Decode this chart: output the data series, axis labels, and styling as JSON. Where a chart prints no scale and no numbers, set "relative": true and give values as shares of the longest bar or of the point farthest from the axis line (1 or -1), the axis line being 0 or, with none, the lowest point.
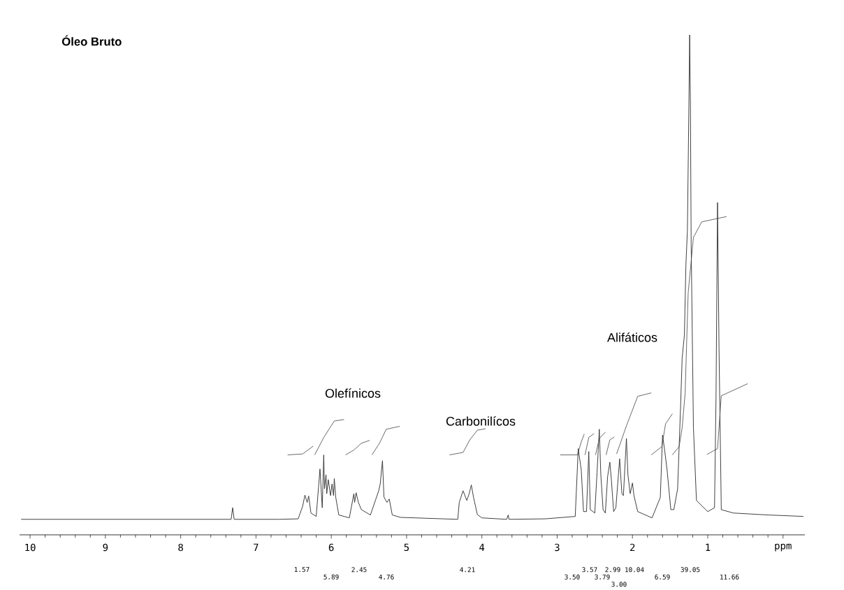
{
  "chart_data": {
    "type": "line",
    "title": "Óleo Bruto",
    "relative": true,
    "xlim": [
      10.14,
      -0.29
    ],
    "xticks": [
      10,
      9,
      8,
      7,
      6,
      5,
      4,
      3,
      2,
      1,
      {
        "value": 0,
        "label": "ppm"
      }
    ],
    "series": [
      {
        "color": "#333333",
        "x": [
          10.12,
          7.33,
          7.31,
          7.29,
          6.69,
          6.44,
          6.38,
          6.35,
          6.32,
          6.3,
          6.27,
          6.2,
          6.15,
          6.12,
          6.1,
          6.09,
          6.07,
          6.06,
          6.04,
          6.01,
          5.99,
          5.97,
          5.96,
          5.94,
          5.9,
          5.76,
          5.7,
          5.69,
          5.67,
          5.64,
          5.6,
          5.48,
          5.37,
          5.35,
          5.32,
          5.3,
          5.26,
          5.23,
          5.19,
          5.08,
          4.32,
          4.3,
          4.25,
          4.2,
          4.17,
          4.14,
          4.11,
          4.06,
          4.0,
          3.67,
          3.65,
          3.64,
          3.16,
          2.76,
          2.72,
          2.68,
          2.65,
          2.61,
          2.58,
          2.56,
          2.5,
          2.47,
          2.44,
          2.42,
          2.39,
          2.36,
          2.33,
          2.3,
          2.28,
          2.25,
          2.22,
          2.17,
          2.14,
          2.12,
          2.08,
          2.06,
          2.03,
          2.0,
          1.98,
          1.93,
          1.74,
          1.63,
          1.6,
          1.57,
          1.54,
          1.49,
          1.45,
          1.4,
          1.36,
          1.34,
          1.31,
          1.29,
          1.27,
          1.25,
          1.24,
          1.23,
          1.22,
          1.19,
          1.15,
          1.0,
          0.91,
          0.89,
          0.87,
          0.85,
          0.82,
          0.66,
          0.2,
          -0.27
        ],
        "values": [
          0,
          0,
          0.024,
          0,
          0,
          0.001,
          0.027,
          0.05,
          0.035,
          0.048,
          0.013,
          0.006,
          0.104,
          0.024,
          0.133,
          0.063,
          0.092,
          0.053,
          0.082,
          0.049,
          0.073,
          0.049,
          0.084,
          0.045,
          0.009,
          0.003,
          0.053,
          0.035,
          0.055,
          0.035,
          0.02,
          0.009,
          0.059,
          0.073,
          0.121,
          0.046,
          0.035,
          0.042,
          0.009,
          0.004,
          0,
          0.035,
          0.059,
          0.039,
          0.052,
          0.071,
          0.045,
          0.01,
          0.003,
          0,
          0.009,
          0,
          0.001,
          0.006,
          0.146,
          0.102,
          0.016,
          0.016,
          0.14,
          0.02,
          0.013,
          0.097,
          0.186,
          0.092,
          0.02,
          0.013,
          0.088,
          0.118,
          0.082,
          0.016,
          0.024,
          0.125,
          0.053,
          0.049,
          0.167,
          0.092,
          0.053,
          0.075,
          0.049,
          0.016,
          0.003,
          0.045,
          0.174,
          0.14,
          0.102,
          0.02,
          0.02,
          0.063,
          0.236,
          0.333,
          0.38,
          0.525,
          0.597,
          0.856,
          1,
          0.856,
          0.568,
          0.189,
          0.039,
          0.016,
          0.024,
          0.251,
          0.654,
          0.352,
          0.02,
          0.013,
          0.009,
          0.006
        ]
      },
      {
        "color": "#444444",
        "x": [
          6.58,
          6.38,
          6.24
        ],
        "values": [
          0.133,
          0.135,
          0.151
        ]
      },
      {
        "color": "#444444",
        "x": [
          6.22,
          6.1,
          5.96,
          5.83
        ],
        "values": [
          0.133,
          0.169,
          0.203,
          0.206
        ]
      },
      {
        "color": "#444444",
        "x": [
          5.81,
          5.7,
          5.6,
          5.49
        ],
        "values": [
          0.133,
          0.143,
          0.157,
          0.163
        ]
      },
      {
        "color": "#444444",
        "x": [
          5.46,
          5.36,
          5.27,
          5.09
        ],
        "values": [
          0.133,
          0.157,
          0.186,
          0.192
        ]
      },
      {
        "color": "#444444",
        "x": [
          4.43,
          4.25,
          4.16,
          4.06,
          3.95
        ],
        "values": [
          0.133,
          0.138,
          0.164,
          0.184,
          0.187
        ]
      },
      {
        "color": "#444444",
        "x": [
          2.96,
          2.73,
          2.68,
          2.64
        ],
        "values": [
          0.133,
          0.133,
          0.16,
          0.176
        ]
      },
      {
        "color": "#444444",
        "x": [
          2.63,
          2.58,
          2.51
        ],
        "values": [
          0.133,
          0.169,
          0.177
        ]
      },
      {
        "color": "#444444",
        "x": [
          2.49,
          2.44,
          2.36
        ],
        "values": [
          0.133,
          0.167,
          0.18
        ]
      },
      {
        "color": "#444444",
        "x": [
          2.35,
          2.3,
          2.24
        ],
        "values": [
          0.133,
          0.164,
          0.17
        ]
      },
      {
        "color": "#444444",
        "x": [
          2.21,
          2.08,
          1.93,
          1.75
        ],
        "values": [
          0.135,
          0.193,
          0.254,
          0.261
        ]
      },
      {
        "color": "#444444",
        "x": [
          1.75,
          1.61,
          1.56,
          1.47
        ],
        "values": [
          0.133,
          0.15,
          0.197,
          0.218
        ]
      },
      {
        "color": "#444444",
        "x": [
          1.47,
          1.38,
          1.34,
          1.3,
          1.26,
          1.19,
          1.08,
          0.75
        ],
        "values": [
          0.133,
          0.15,
          0.189,
          0.261,
          0.467,
          0.582,
          0.614,
          0.625
        ]
      },
      {
        "color": "#444444",
        "x": [
          1.01,
          0.87,
          0.82,
          0.47
        ],
        "values": [
          0.134,
          0.146,
          0.255,
          0.28
        ]
      }
    ],
    "annotations": [
      "Olefínicos",
      "Carbonilícos",
      "Alifáticos",
      "1.57",
      "5.89",
      "2.45",
      "4.76",
      "4.21",
      "3.50",
      "3.57",
      "3.79",
      "2.99",
      "3.00",
      "10.04",
      "6.59",
      "39.05",
      "11.66"
    ]
  }
}
